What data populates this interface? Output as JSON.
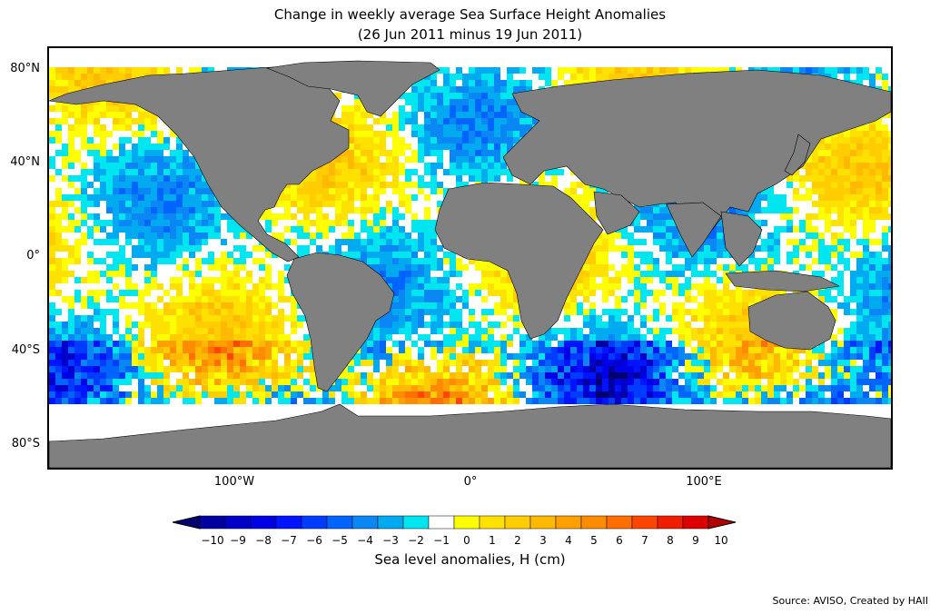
{
  "title_line1": "Change in weekly average Sea Surface Height Anomalies",
  "title_line2": "(26 Jun 2011 minus 19 Jun 2011)",
  "lat_labels": [
    "80°N",
    "40°N",
    "0°",
    "40°S",
    "80°S"
  ],
  "lon_labels": [
    "100°W",
    "0°",
    "100°E"
  ],
  "colorbar": {
    "ticks": [
      "−10",
      "−9",
      "−8",
      "−7",
      "−6",
      "−5",
      "−4",
      "−3",
      "−2",
      "−1",
      "0",
      "1",
      "2",
      "3",
      "4",
      "5",
      "6",
      "7",
      "8",
      "9",
      "10"
    ],
    "colors": [
      "#00006e",
      "#0000a0",
      "#0000c8",
      "#0000e6",
      "#0014ff",
      "#003cff",
      "#0064ff",
      "#0a87f5",
      "#00aaf0",
      "#00e6f0",
      "#ffffff",
      "#ffff00",
      "#ffe100",
      "#ffcd00",
      "#ffb900",
      "#ffa000",
      "#ff8c00",
      "#ff6e00",
      "#ff4600",
      "#f01e00",
      "#dc0000",
      "#b40000"
    ],
    "label": "Sea level anomalies, H (cm)",
    "extend": "both"
  },
  "land_color": "#808080",
  "source": "Source: AVISO, Created by HAII"
}
